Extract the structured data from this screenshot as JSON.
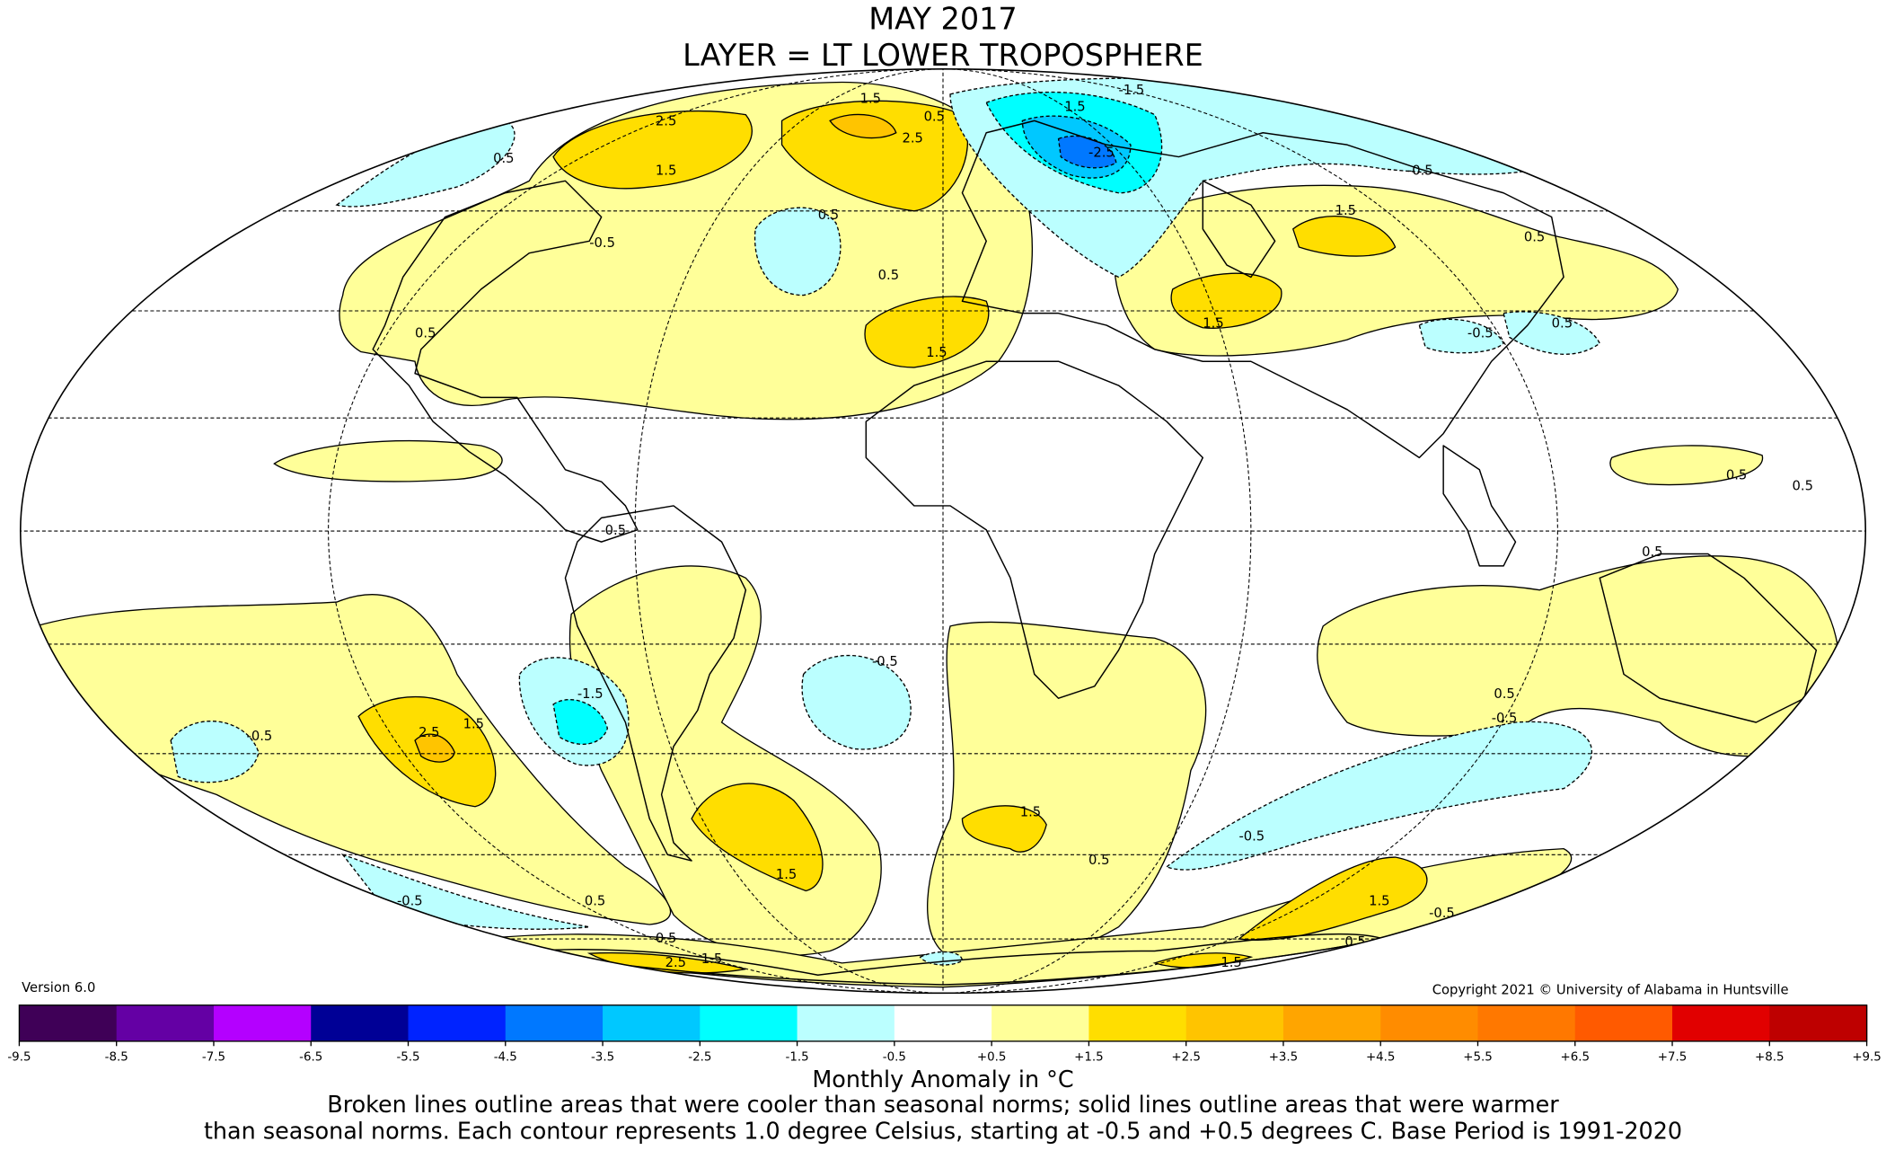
{
  "title": {
    "line1": "MAY 2017",
    "line2": "LAYER = LT LOWER TROPOSPHERE"
  },
  "version": "Version 6.0",
  "copyright": "Copyright 2021 © University of Alabama in Huntsville",
  "colorbar": {
    "ticks": [
      "-9.5",
      "-8.5",
      "-7.5",
      "-6.5",
      "-5.5",
      "-4.5",
      "-3.5",
      "-2.5",
      "-1.5",
      "-0.5",
      "+0.5",
      "+1.5",
      "+2.5",
      "+3.5",
      "+4.5",
      "+5.5",
      "+6.5",
      "+7.5",
      "+8.5",
      "+9.5"
    ],
    "colors": [
      "#3f0057",
      "#6400a4",
      "#b400ff",
      "#000096",
      "#0023ff",
      "#0078ff",
      "#00c8ff",
      "#00ffff",
      "#bbffff",
      "#ffffff",
      "#ffff99",
      "#ffde00",
      "#ffc400",
      "#ffa500",
      "#ff8c00",
      "#ff7800",
      "#ff5a00",
      "#e10000",
      "#be0000"
    ],
    "title": "Monthly Anomaly in °C"
  },
  "caption": {
    "line1": "Broken lines outline areas that were cooler than seasonal norms; solid lines outline areas that were warmer",
    "line2": "than seasonal norms. Each contour represents 1.0 degree Celsius, starting at -0.5 and +0.5 degrees C. Base Period is 1991-2020"
  },
  "contour_labels": [
    "-1.5",
    "1.5",
    "0.5",
    "2.5",
    "1.5",
    "2.5",
    "0.5",
    "1.5",
    "-2.5",
    "-0.5",
    "0.5",
    "-0.5",
    "0.5",
    "0.5",
    "1.5",
    "1.5",
    "1.5",
    "-0.5",
    "0.5",
    "0.5",
    "0.5",
    "0.5",
    "0.5",
    "-0.5",
    "-1.5",
    "2.5",
    "1.5",
    "-0.5",
    "1.5",
    "1.5",
    "-0.5",
    "0.5",
    "0.5",
    "-0.5",
    "1.5",
    "-0.5",
    "0.5",
    "2.5",
    "1.5",
    "0.5",
    "0.5",
    "1.5",
    "0.5",
    "-0.5"
  ]
}
